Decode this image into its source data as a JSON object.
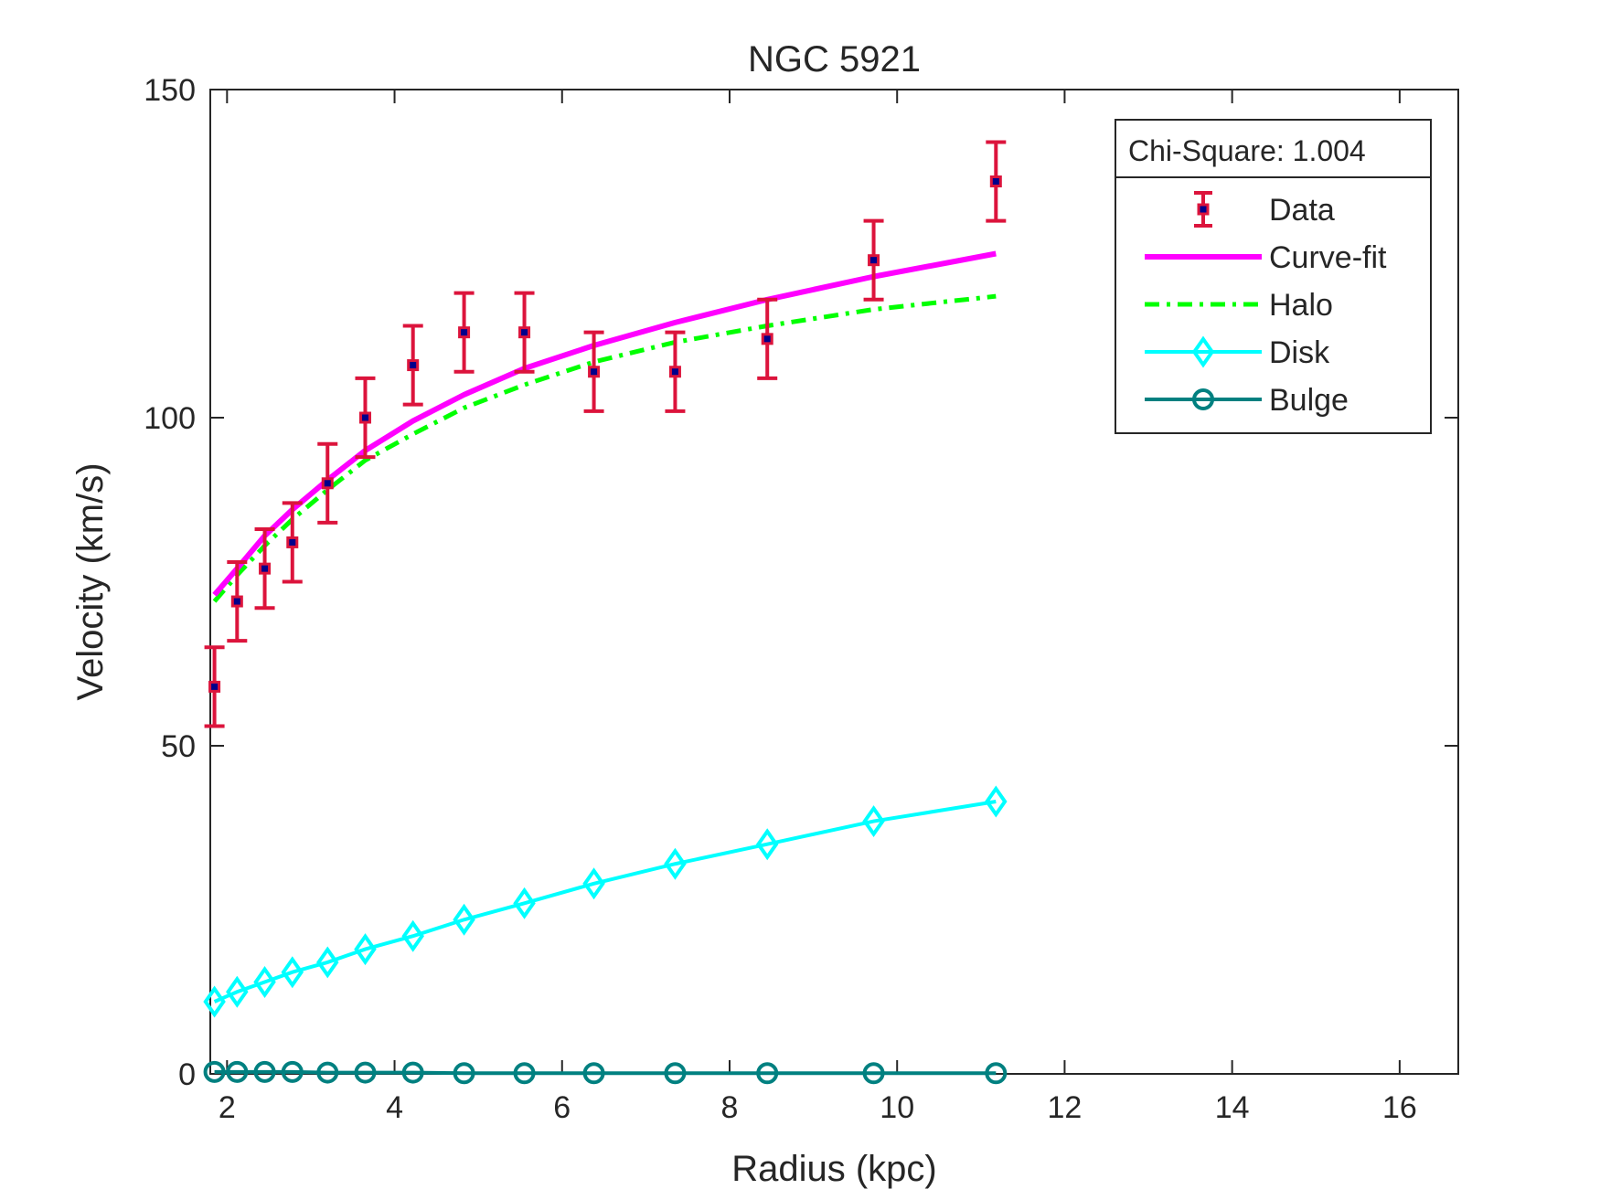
{
  "chart_data": {
    "type": "line",
    "title": "NGC 5921",
    "xlabel": "Radius (kpc)",
    "ylabel": "Velocity (km/s)",
    "xlim": [
      1.8,
      16.7
    ],
    "ylim": [
      0,
      150
    ],
    "xticks": [
      2,
      4,
      6,
      8,
      10,
      12,
      14,
      16
    ],
    "yticks": [
      0,
      50,
      100,
      150
    ],
    "grid": false,
    "legend_position": "top-right",
    "annotation": "Chi-Square: 1.004",
    "x": [
      1.85,
      2.12,
      2.45,
      2.78,
      3.2,
      3.65,
      4.22,
      4.83,
      5.55,
      6.38,
      7.35,
      8.45,
      9.72,
      11.18
    ],
    "series": [
      {
        "name": "Data",
        "kind": "errorbar",
        "color": "#dc143c",
        "values": [
          59,
          72,
          77,
          81,
          90,
          100,
          108,
          113,
          113,
          107,
          107,
          112,
          124,
          136
        ],
        "errors": [
          6,
          6,
          6,
          6,
          6,
          6,
          6,
          6,
          6,
          6,
          6,
          6,
          6,
          6
        ]
      },
      {
        "name": "Curve-fit",
        "kind": "line",
        "color": "#ff00ff",
        "values": [
          73,
          77,
          82,
          86,
          90.5,
          95,
          99.5,
          103.5,
          107.5,
          111,
          114.5,
          118,
          121.5,
          125
        ]
      },
      {
        "name": "Halo",
        "kind": "dashdot",
        "color": "#00ff00",
        "values": [
          72,
          76,
          80.5,
          84.5,
          89,
          93.5,
          97.5,
          101.5,
          105,
          108.5,
          111.5,
          114,
          116.5,
          118.5
        ]
      },
      {
        "name": "Disk",
        "kind": "diamond-line",
        "color": "#00ffff",
        "values": [
          11,
          12.5,
          14,
          15.5,
          17,
          19,
          21,
          23.5,
          26,
          29,
          32,
          35,
          38.5,
          41.5
        ]
      },
      {
        "name": "Bulge",
        "kind": "circle-line",
        "color": "#008080",
        "values": [
          0.3,
          0.3,
          0.3,
          0.3,
          0.2,
          0.2,
          0.2,
          0.1,
          0.1,
          0.1,
          0.1,
          0.1,
          0.1,
          0.1
        ]
      }
    ]
  }
}
